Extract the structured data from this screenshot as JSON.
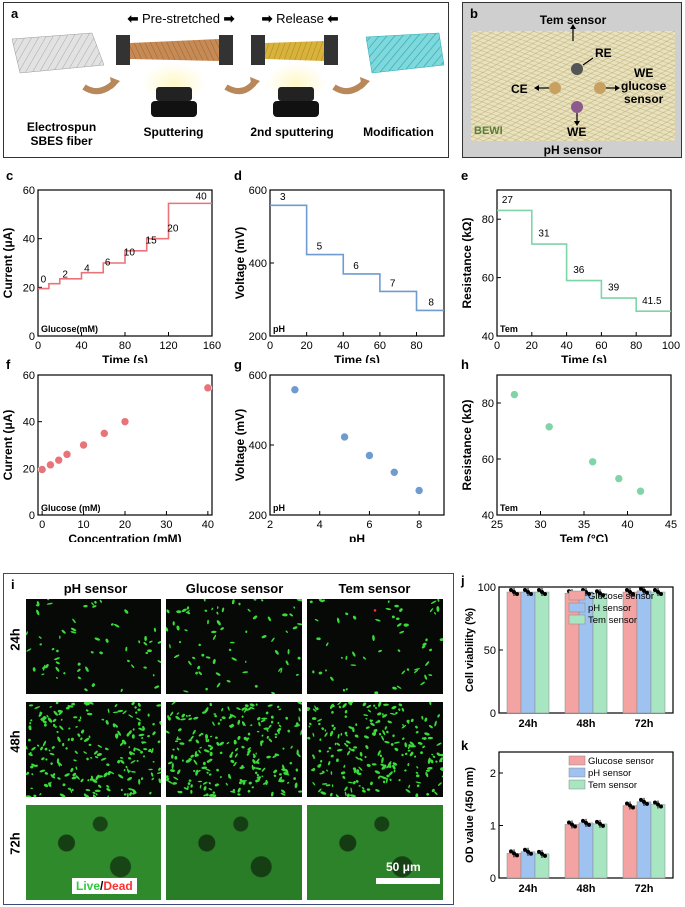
{
  "panel_a": {
    "label": "a",
    "pre_stretched": "Pre-stretched",
    "release": "Release",
    "steps": [
      {
        "line1": "Electrospun",
        "line2": "SBES fiber"
      },
      {
        "line1": "Sputtering",
        "line2": ""
      },
      {
        "line1": "2nd sputtering",
        "line2": ""
      },
      {
        "line1": "Modification",
        "line2": ""
      }
    ],
    "colors": {
      "fiber": "#d9d9d9",
      "gold_brown": "#c68a55",
      "gold": "#d9b23b",
      "blue": "#4fc5cc",
      "arrow": "#b8875a"
    }
  },
  "panel_b": {
    "label": "b",
    "top": "Tem sensor",
    "bottom": "pH sensor",
    "re": "RE",
    "ce": "CE",
    "we_right_1": "WE",
    "we_right_2": "glucose",
    "we_right_3": "sensor",
    "we_bottom": "WE",
    "bewi": "BEWI"
  },
  "chart_data": [
    {
      "id": "c",
      "label": "c",
      "type": "line",
      "color": "#e8747a",
      "xlabel": "Time (s)",
      "ylabel": "Current (μA)",
      "note": "Glucose(mM)",
      "xlim": [
        0,
        160
      ],
      "ylim": [
        0,
        60
      ],
      "xticks": [
        0,
        40,
        80,
        120,
        160
      ],
      "yticks": [
        0,
        20,
        40,
        60
      ],
      "x": [
        0,
        10,
        10,
        20,
        20,
        40,
        40,
        60,
        60,
        80,
        80,
        100,
        100,
        120,
        120,
        140,
        140,
        160
      ],
      "y": [
        19.5,
        19.5,
        21.5,
        21.5,
        23.5,
        23.5,
        26,
        26,
        30,
        30,
        35,
        35,
        40,
        40,
        54.5,
        54.5,
        54.5,
        54.5
      ],
      "step_labels": [
        {
          "text": "0",
          "x": 5,
          "y": 22
        },
        {
          "text": "2",
          "x": 25,
          "y": 24
        },
        {
          "text": "4",
          "x": 45,
          "y": 26.5
        },
        {
          "text": "6",
          "x": 64,
          "y": 29
        },
        {
          "text": "10",
          "x": 84,
          "y": 33
        },
        {
          "text": "15",
          "x": 104,
          "y": 38
        },
        {
          "text": "20",
          "x": 124,
          "y": 43
        },
        {
          "text": "40",
          "x": 150,
          "y": 56
        }
      ]
    },
    {
      "id": "d",
      "label": "d",
      "type": "line",
      "color": "#6f9bd0",
      "xlabel": "Time (s)",
      "ylabel": "Voltage (mV)",
      "note": "pH",
      "xlim": [
        0,
        95
      ],
      "ylim": [
        200,
        600
      ],
      "xticks": [
        0,
        20,
        40,
        60,
        80
      ],
      "yticks": [
        200,
        400,
        600
      ],
      "x": [
        0,
        20,
        20,
        40,
        40,
        60,
        60,
        80,
        80,
        95
      ],
      "y": [
        558,
        558,
        423,
        423,
        370,
        370,
        322,
        322,
        270,
        270
      ],
      "step_labels": [
        {
          "text": "3",
          "x": 7,
          "y": 572
        },
        {
          "text": "5",
          "x": 27,
          "y": 437
        },
        {
          "text": "6",
          "x": 47,
          "y": 384
        },
        {
          "text": "7",
          "x": 67,
          "y": 336
        },
        {
          "text": "8",
          "x": 88,
          "y": 284
        }
      ]
    },
    {
      "id": "e",
      "label": "e",
      "type": "line",
      "color": "#7fd4a8",
      "xlabel": "Time (s)",
      "ylabel": "Resistance (kΩ)",
      "note": "Tem",
      "xlim": [
        0,
        100
      ],
      "ylim": [
        40,
        90
      ],
      "xticks": [
        0,
        20,
        40,
        60,
        80,
        100
      ],
      "yticks": [
        40,
        60,
        80
      ],
      "x": [
        0,
        20,
        20,
        40,
        40,
        60,
        60,
        80,
        80,
        100
      ],
      "y": [
        83,
        83,
        71.5,
        71.5,
        59,
        59,
        53,
        53,
        48.5,
        48.5
      ],
      "step_labels": [
        {
          "text": "27",
          "x": 6,
          "y": 85.5
        },
        {
          "text": "31",
          "x": 27,
          "y": 74
        },
        {
          "text": "36",
          "x": 47,
          "y": 61.5
        },
        {
          "text": "39",
          "x": 67,
          "y": 55.5
        },
        {
          "text": "41.5",
          "x": 89,
          "y": 51
        }
      ]
    },
    {
      "id": "f",
      "label": "f",
      "type": "scatter",
      "color": "#e8747a",
      "xlabel": "Concentration (mM)",
      "ylabel": "Current (μA)",
      "note": "Glucose (mM)",
      "xlim": [
        -1,
        41
      ],
      "ylim": [
        0,
        60
      ],
      "xticks": [
        0,
        10,
        20,
        30,
        40
      ],
      "yticks": [
        0,
        20,
        40,
        60
      ],
      "x": [
        0,
        2,
        4,
        6,
        10,
        15,
        20,
        40
      ],
      "y": [
        19.5,
        21.5,
        23.5,
        26,
        30,
        35,
        40,
        54.5
      ]
    },
    {
      "id": "g",
      "label": "g",
      "type": "scatter",
      "color": "#6f9bd0",
      "xlabel": "pH",
      "ylabel": "Voltage (mV)",
      "note": "pH",
      "xlim": [
        2,
        9
      ],
      "ylim": [
        200,
        600
      ],
      "xticks": [
        2,
        4,
        6,
        8
      ],
      "yticks": [
        200,
        400,
        600
      ],
      "x": [
        3,
        5,
        6,
        7,
        8
      ],
      "y": [
        558,
        423,
        370,
        322,
        270
      ]
    },
    {
      "id": "h",
      "label": "h",
      "type": "scatter",
      "color": "#7fd4a8",
      "xlabel": "Tem (°C)",
      "ylabel": "Resistance (kΩ)",
      "note": "Tem",
      "xlim": [
        25,
        45
      ],
      "ylim": [
        40,
        90
      ],
      "xticks": [
        25,
        30,
        35,
        40,
        45
      ],
      "yticks": [
        40,
        60,
        80
      ],
      "x": [
        27,
        31,
        36,
        39,
        41.5
      ],
      "y": [
        83,
        71.5,
        59,
        53,
        48.5
      ]
    },
    {
      "id": "j",
      "label": "j",
      "type": "bar",
      "xlabel": "",
      "ylabel": "Cell viability (%)",
      "categories": [
        "24h",
        "48h",
        "72h"
      ],
      "ylim": [
        0,
        100
      ],
      "yticks": [
        0,
        50,
        100
      ],
      "series": [
        {
          "name": "Glucose sensor",
          "color": "#f4a3a3",
          "values": [
            96,
            95,
            96
          ]
        },
        {
          "name": "pH sensor",
          "color": "#9fc3f0",
          "values": [
            96,
            96,
            97
          ]
        },
        {
          "name": "Tem sensor",
          "color": "#a8e6c2",
          "values": [
            96,
            95,
            96
          ]
        }
      ],
      "legend": "top-right"
    },
    {
      "id": "k",
      "label": "k",
      "type": "bar",
      "xlabel": "",
      "ylabel": "OD value (450 nm)",
      "categories": [
        "24h",
        "48h",
        "72h"
      ],
      "ylim": [
        0,
        2.4
      ],
      "yticks": [
        0,
        1,
        2
      ],
      "series": [
        {
          "name": "Glucose sensor",
          "color": "#f4a3a3",
          "values": [
            0.47,
            1.02,
            1.38
          ]
        },
        {
          "name": "pH sensor",
          "color": "#9fc3f0",
          "values": [
            0.5,
            1.05,
            1.45
          ]
        },
        {
          "name": "Tem sensor",
          "color": "#a8e6c2",
          "values": [
            0.46,
            1.03,
            1.4
          ]
        }
      ],
      "legend": "top-right"
    }
  ],
  "panel_i": {
    "label": "i",
    "columns": [
      "pH sensor",
      "Glucose sensor",
      "Tem sensor"
    ],
    "rows": [
      "24h",
      "48h",
      "72h"
    ],
    "live": "Live",
    "slash": "/",
    "dead": "Dead",
    "scale": "50 μm",
    "colors": {
      "live": "#2ecc40",
      "dead": "#ff3030"
    }
  }
}
